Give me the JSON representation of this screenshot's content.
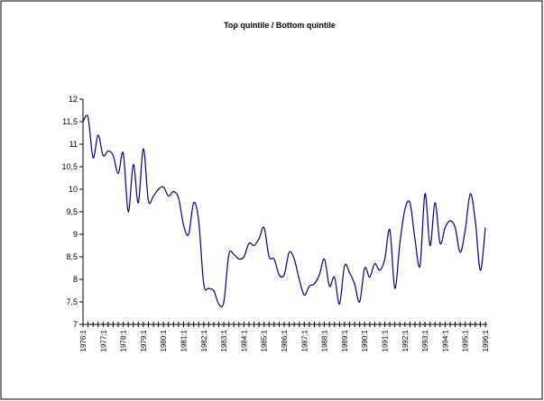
{
  "chart_data": {
    "type": "line",
    "title": "Top quintile / Bottom quintile",
    "categories": [
      "1976:1",
      null,
      null,
      null,
      "1977:1",
      null,
      null,
      null,
      "1978:1",
      null,
      null,
      null,
      "1979:1",
      null,
      null,
      null,
      "1980:1",
      null,
      null,
      null,
      "1981:1",
      null,
      null,
      null,
      "1982:1",
      null,
      null,
      null,
      "1983:1",
      null,
      null,
      null,
      "1984:1",
      null,
      null,
      null,
      "1985:1",
      null,
      null,
      null,
      "1986:1",
      null,
      null,
      null,
      "1987:1",
      null,
      null,
      null,
      "1988:1",
      null,
      null,
      null,
      "1989:1",
      null,
      null,
      null,
      "1990:1",
      null,
      null,
      null,
      "1991:1",
      null,
      null,
      null,
      "1992:1",
      null,
      null,
      null,
      "1993:1",
      null,
      null,
      null,
      "1994:1",
      null,
      null,
      null,
      "1995:1",
      null,
      null,
      null,
      "1996:1"
    ],
    "values": [
      11.5,
      11.6,
      10.7,
      11.2,
      10.75,
      10.85,
      10.75,
      10.35,
      10.8,
      9.5,
      10.55,
      9.7,
      10.9,
      9.75,
      9.85,
      10.0,
      10.05,
      9.85,
      9.95,
      9.8,
      9.2,
      9.0,
      9.7,
      9.3,
      7.9,
      7.8,
      7.75,
      7.45,
      7.5,
      8.55,
      8.55,
      8.45,
      8.5,
      8.8,
      8.75,
      8.9,
      9.15,
      8.5,
      8.45,
      8.1,
      8.1,
      8.6,
      8.45,
      8.0,
      7.65,
      7.85,
      7.9,
      8.1,
      8.45,
      7.85,
      8.05,
      7.45,
      8.3,
      8.15,
      7.9,
      7.5,
      8.25,
      8.05,
      8.35,
      8.2,
      8.45,
      9.1,
      7.8,
      8.8,
      9.55,
      9.7,
      8.9,
      8.3,
      9.9,
      8.75,
      9.7,
      8.8,
      9.15,
      9.3,
      9.15,
      8.6,
      9.1,
      9.9,
      9.3,
      8.2,
      9.15
    ],
    "color": "#000080",
    "ylim": [
      7,
      12
    ],
    "yticks": [
      7,
      {
        "value": 7.5,
        "label": "7,5"
      },
      8,
      {
        "value": 8.5,
        "label": "8,5"
      },
      9,
      {
        "value": 9.5,
        "label": "9,5"
      },
      10,
      {
        "value": 10.5,
        "label": "10,5"
      },
      11,
      {
        "value": 11.5,
        "label": "11,5"
      },
      12
    ]
  }
}
